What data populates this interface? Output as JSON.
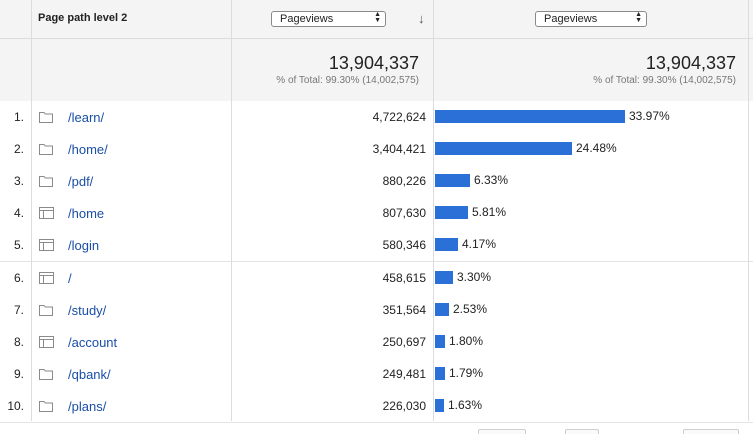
{
  "header": {
    "dimension_label": "Page path level 2",
    "metric_select_1": "Pageviews",
    "metric_select_2": "Pageviews"
  },
  "totals": {
    "value_1": "13,904,337",
    "sub_1": "% of Total: 99.30% (14,002,575)",
    "value_2": "13,904,337",
    "sub_2": "% of Total: 99.30% (14,002,575)"
  },
  "colors": {
    "bar": "#2b70d6",
    "link": "#1a4ea8"
  },
  "rows": [
    {
      "index": "1.",
      "icon": "folder-icon",
      "path": "/learn/",
      "pageviews": "4,722,624",
      "percent": "33.97%",
      "fraction": 0.3397
    },
    {
      "index": "2.",
      "icon": "folder-icon",
      "path": "/home/",
      "pageviews": "3,404,421",
      "percent": "24.48%",
      "fraction": 0.2448
    },
    {
      "index": "3.",
      "icon": "folder-icon",
      "path": "/pdf/",
      "pageviews": "880,226",
      "percent": "6.33%",
      "fraction": 0.0633
    },
    {
      "index": "4.",
      "icon": "page-icon",
      "path": "/home",
      "pageviews": "807,630",
      "percent": "5.81%",
      "fraction": 0.0581
    },
    {
      "index": "5.",
      "icon": "page-icon",
      "path": "/login",
      "pageviews": "580,346",
      "percent": "4.17%",
      "fraction": 0.0417
    },
    {
      "index": "6.",
      "icon": "page-icon",
      "path": "/",
      "pageviews": "458,615",
      "percent": "3.30%",
      "fraction": 0.033
    },
    {
      "index": "7.",
      "icon": "folder-icon",
      "path": "/study/",
      "pageviews": "351,564",
      "percent": "2.53%",
      "fraction": 0.0253
    },
    {
      "index": "8.",
      "icon": "page-icon",
      "path": "/account",
      "pageviews": "250,697",
      "percent": "1.80%",
      "fraction": 0.018
    },
    {
      "index": "9.",
      "icon": "folder-icon",
      "path": "/qbank/",
      "pageviews": "249,481",
      "percent": "1.79%",
      "fraction": 0.0179
    },
    {
      "index": "10.",
      "icon": "folder-icon",
      "path": "/plans/",
      "pageviews": "226,030",
      "percent": "1.63%",
      "fraction": 0.0163
    }
  ]
}
